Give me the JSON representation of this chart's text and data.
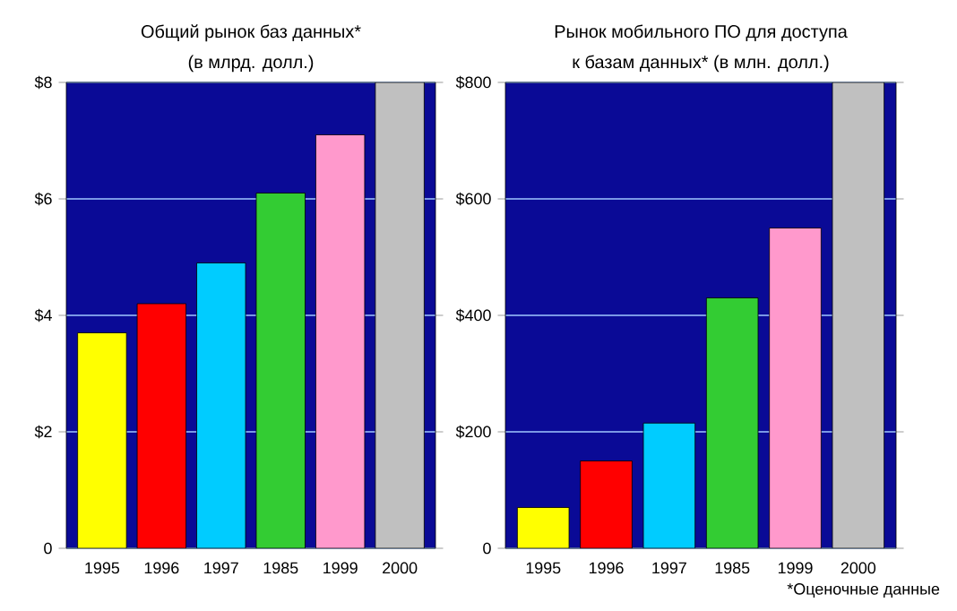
{
  "chart_data": [
    {
      "type": "bar",
      "title": "Общий рынок баз данных*",
      "subtitle": "(в млрд. долл.)",
      "categories": [
        "1995",
        "1996",
        "1997",
        "1985",
        "1999",
        "2000"
      ],
      "values": [
        3.7,
        4.2,
        4.9,
        6.1,
        7.1,
        8.0
      ],
      "colors": [
        "#ffff00",
        "#ff0000",
        "#00ccff",
        "#33cc33",
        "#ff99cc",
        "#c0c0c0"
      ],
      "ylim": [
        0,
        8
      ],
      "yticks": [
        0,
        {
          "value": 2,
          "label": "$2"
        },
        {
          "value": 4,
          "label": "$4"
        },
        {
          "value": 6,
          "label": "$6"
        },
        {
          "value": 8,
          "label": "$8"
        }
      ],
      "grid": "y"
    },
    {
      "type": "bar",
      "title": "Рынок мобильного ПО для доступа",
      "subtitle": "к базам данных* (в млн. долл.)",
      "categories": [
        "1995",
        "1996",
        "1997",
        "1985",
        "1999",
        "2000"
      ],
      "values": [
        70,
        150,
        215,
        430,
        550,
        800
      ],
      "colors": [
        "#ffff00",
        "#ff0000",
        "#00ccff",
        "#33cc33",
        "#ff99cc",
        "#c0c0c0"
      ],
      "ylim": [
        0,
        800
      ],
      "yticks": [
        0,
        {
          "value": 200,
          "label": "$200"
        },
        {
          "value": 400,
          "label": "$400"
        },
        {
          "value": 600,
          "label": "$600"
        },
        {
          "value": 800,
          "label": "$800"
        }
      ],
      "grid": "y",
      "annotations": [
        "*Оценочные данные"
      ]
    }
  ]
}
